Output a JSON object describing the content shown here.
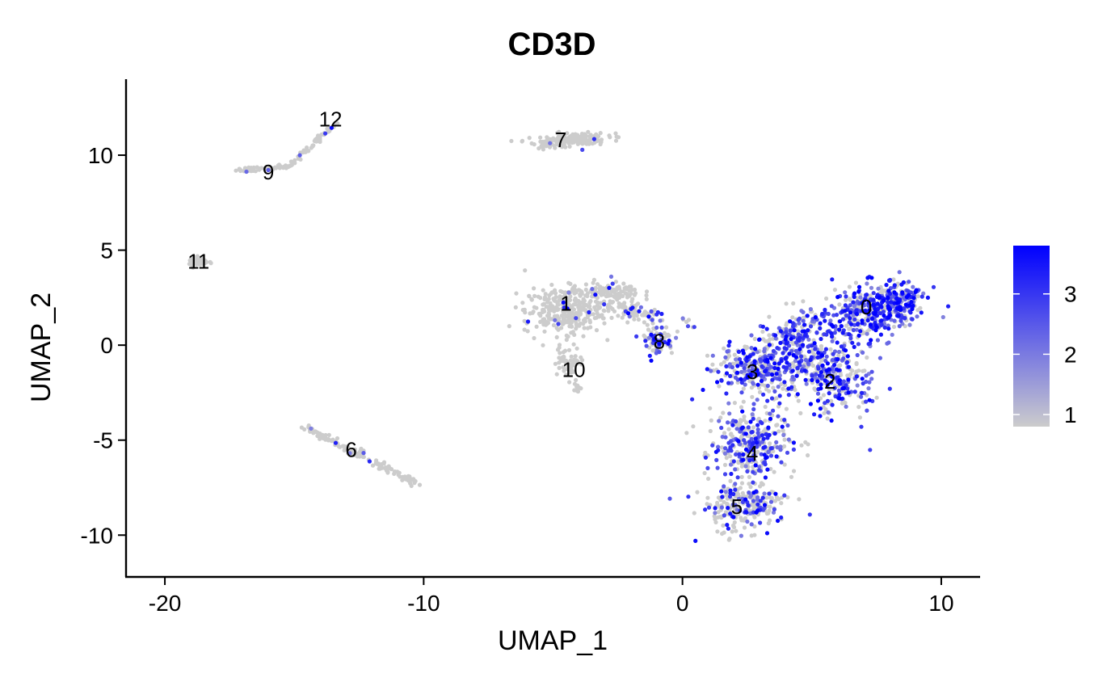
{
  "chart_data": {
    "type": "scatter",
    "title": "CD3D",
    "xlabel": "UMAP_1",
    "ylabel": "UMAP_2",
    "xlim": [
      -21.5,
      11.5
    ],
    "ylim": [
      -12.2,
      14.0
    ],
    "x_ticks": [
      -20,
      -10,
      0,
      10
    ],
    "x_tick_labels": [
      "-20",
      "-10",
      "0",
      "10"
    ],
    "y_ticks": [
      -10,
      -5,
      0,
      5,
      10
    ],
    "y_tick_labels": [
      "-10",
      "-5",
      "0",
      "5",
      "10"
    ],
    "grid": false,
    "legend": {
      "type": "colorbar",
      "placement": "right",
      "low_color": "#cccccc",
      "high_color": "#0000ff",
      "range": [
        0.8,
        3.8
      ],
      "ticks": [
        1,
        2,
        3
      ],
      "tick_labels": [
        "1",
        "2",
        "3"
      ]
    },
    "clusters": [
      {
        "label": "0",
        "x": 7.1,
        "y": 2.0,
        "expression": 0.65
      },
      {
        "label": "1",
        "x": -4.5,
        "y": 2.2,
        "expression": 0.04
      },
      {
        "label": "2",
        "x": 5.7,
        "y": -1.9,
        "expression": 0.55
      },
      {
        "label": "3",
        "x": 2.7,
        "y": -1.4,
        "expression": 0.55
      },
      {
        "label": "4",
        "x": 2.7,
        "y": -5.7,
        "expression": 0.5
      },
      {
        "label": "5",
        "x": 2.1,
        "y": -8.5,
        "expression": 0.35
      },
      {
        "label": "6",
        "x": -12.8,
        "y": -5.5,
        "expression": 0.06
      },
      {
        "label": "7",
        "x": -4.7,
        "y": 10.8,
        "expression": 0.03
      },
      {
        "label": "8",
        "x": -0.9,
        "y": 0.2,
        "expression": 0.45
      },
      {
        "label": "9",
        "x": -16.0,
        "y": 9.1,
        "expression": 0.05
      },
      {
        "label": "10",
        "x": -4.2,
        "y": -1.3,
        "expression": 0.0
      },
      {
        "label": "11",
        "x": -18.7,
        "y": 4.4,
        "expression": 0.0
      },
      {
        "label": "12",
        "x": -13.6,
        "y": 11.9,
        "expression": 0.0
      }
    ]
  }
}
